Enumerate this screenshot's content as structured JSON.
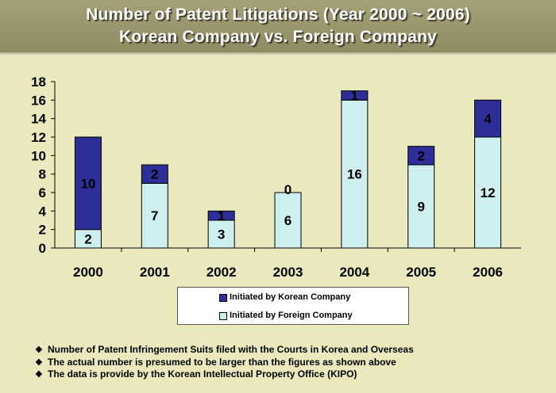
{
  "header": {
    "title_line1": "Number of Patent Litigations (Year 2000 ~ 2006)",
    "title_line2": "Korean Company vs. Foreign Company"
  },
  "colors": {
    "korean": "#2e2e99",
    "foreign": "#cdeff0",
    "background": "#eae9be",
    "title_band": "#9a9770"
  },
  "chart_data": {
    "type": "bar",
    "stacked": true,
    "categories": [
      "2000",
      "2001",
      "2002",
      "2003",
      "2004",
      "2005",
      "2006"
    ],
    "series": [
      {
        "name": "Initiated by Foreign Company",
        "values": [
          2,
          7,
          3,
          6,
          16,
          9,
          12
        ]
      },
      {
        "name": "Initiated by Korean Company",
        "values": [
          10,
          2,
          1,
          0,
          1,
          2,
          4
        ]
      }
    ],
    "y_ticks": [
      "0",
      "2",
      "4",
      "6",
      "8",
      "10",
      "12",
      "14",
      "16",
      "18"
    ],
    "ylim": [
      0,
      18
    ],
    "grid": false,
    "legend_position": "bottom"
  },
  "legend": {
    "items": [
      {
        "label": "Initiated by Korean Company"
      },
      {
        "label": "Initiated by Foreign Company"
      }
    ]
  },
  "notes": {
    "bullet": "❖",
    "items": [
      "Number of Patent Infringement Suits filed with the Courts in Korea and Overseas",
      "The actual number is presumed to be larger than the figures as shown above",
      "The data is provide by the Korean Intellectual Property Office (KIPO)"
    ]
  }
}
